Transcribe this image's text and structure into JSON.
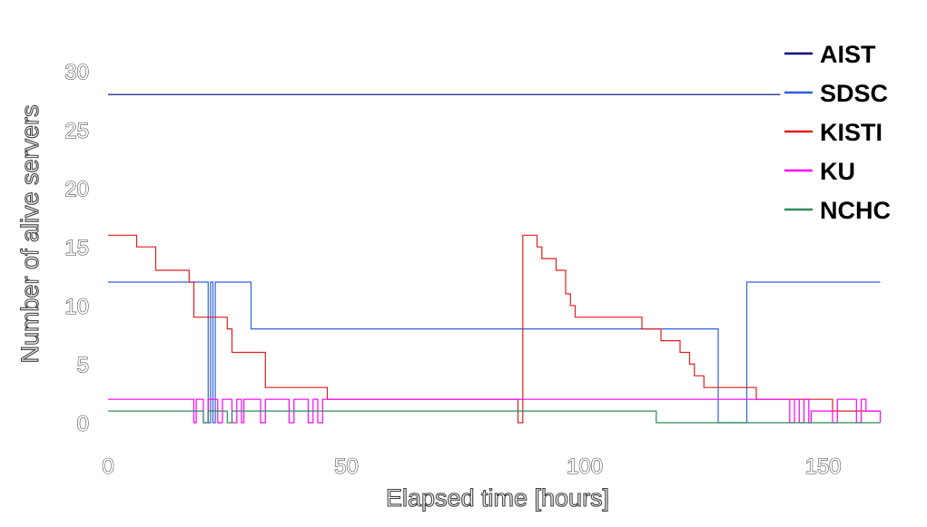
{
  "chart_data": {
    "type": "line",
    "xlabel": "Elapsed time [hours]",
    "ylabel": "Number of alive servers",
    "xlim": [
      0,
      162
    ],
    "ylim": [
      0,
      30
    ],
    "x_ticks": [
      "0",
      "50",
      "100",
      "150"
    ],
    "y_ticks": [
      "0",
      "5",
      "10",
      "15",
      "20",
      "25",
      "30"
    ],
    "legend_position": "top-right",
    "series": [
      {
        "name": "AIST",
        "color": "#000080",
        "points": [
          [
            0,
            28
          ],
          [
            141,
            28
          ]
        ]
      },
      {
        "name": "SDSC",
        "color": "#3060e0",
        "points": [
          [
            0,
            12
          ],
          [
            21,
            12
          ],
          [
            21,
            0
          ],
          [
            21.5,
            0
          ],
          [
            21.5,
            12
          ],
          [
            22,
            12
          ],
          [
            22,
            0
          ],
          [
            22.5,
            0
          ],
          [
            22.5,
            12
          ],
          [
            30,
            12
          ],
          [
            30,
            8
          ],
          [
            128,
            8
          ],
          [
            128,
            0
          ],
          [
            134,
            0
          ],
          [
            134,
            12
          ],
          [
            162,
            12
          ]
        ]
      },
      {
        "name": "KISTI",
        "color": "#e02020",
        "points": [
          [
            0,
            16
          ],
          [
            6,
            16
          ],
          [
            6,
            15
          ],
          [
            10,
            15
          ],
          [
            10,
            13
          ],
          [
            17,
            13
          ],
          [
            17,
            12
          ],
          [
            18,
            12
          ],
          [
            18,
            9
          ],
          [
            25,
            9
          ],
          [
            25,
            8
          ],
          [
            26,
            8
          ],
          [
            26,
            6
          ],
          [
            33,
            6
          ],
          [
            33,
            3
          ],
          [
            46,
            3
          ],
          [
            46,
            2
          ],
          [
            86,
            2
          ],
          [
            86,
            0
          ],
          [
            87,
            0
          ],
          [
            87,
            16
          ],
          [
            90,
            16
          ],
          [
            90,
            15
          ],
          [
            91,
            15
          ],
          [
            91,
            14
          ],
          [
            94,
            14
          ],
          [
            94,
            13
          ],
          [
            96,
            13
          ],
          [
            96,
            11
          ],
          [
            97,
            11
          ],
          [
            97,
            10
          ],
          [
            98,
            10
          ],
          [
            98,
            9
          ],
          [
            112,
            9
          ],
          [
            112,
            8
          ],
          [
            116,
            8
          ],
          [
            116,
            7
          ],
          [
            120,
            7
          ],
          [
            120,
            6
          ],
          [
            122,
            6
          ],
          [
            122,
            5
          ],
          [
            123,
            5
          ],
          [
            123,
            4
          ],
          [
            125,
            4
          ],
          [
            125,
            3
          ],
          [
            136,
            3
          ],
          [
            136,
            2
          ],
          [
            152,
            2
          ],
          [
            152,
            1
          ],
          [
            162,
            1
          ]
        ]
      },
      {
        "name": "KU",
        "color": "#ff00ff",
        "points": [
          [
            0,
            2
          ],
          [
            18,
            2
          ],
          [
            18,
            0
          ],
          [
            18.5,
            0
          ],
          [
            18.5,
            2
          ],
          [
            20,
            2
          ],
          [
            20,
            0
          ],
          [
            21,
            0
          ],
          [
            21,
            2
          ],
          [
            23,
            2
          ],
          [
            23,
            0
          ],
          [
            24,
            0
          ],
          [
            24,
            2
          ],
          [
            26,
            2
          ],
          [
            26,
            0
          ],
          [
            27,
            0
          ],
          [
            27,
            2
          ],
          [
            28,
            2
          ],
          [
            28,
            0
          ],
          [
            28.5,
            0
          ],
          [
            28.5,
            2
          ],
          [
            32,
            2
          ],
          [
            32,
            0
          ],
          [
            33,
            0
          ],
          [
            33,
            2
          ],
          [
            38,
            2
          ],
          [
            38,
            0
          ],
          [
            39,
            0
          ],
          [
            39,
            2
          ],
          [
            42,
            2
          ],
          [
            42,
            0
          ],
          [
            43,
            0
          ],
          [
            43,
            2
          ],
          [
            44,
            2
          ],
          [
            44,
            0
          ],
          [
            45,
            0
          ],
          [
            45,
            2
          ],
          [
            143,
            2
          ],
          [
            143,
            0
          ],
          [
            144,
            0
          ],
          [
            144,
            2
          ],
          [
            145,
            2
          ],
          [
            145,
            0
          ],
          [
            146,
            0
          ],
          [
            146,
            2
          ],
          [
            147,
            2
          ],
          [
            147,
            0
          ],
          [
            147.5,
            0
          ],
          [
            147.5,
            1
          ],
          [
            152,
            1
          ],
          [
            152,
            0
          ],
          [
            153,
            0
          ],
          [
            153,
            2
          ],
          [
            157,
            2
          ],
          [
            157,
            0
          ],
          [
            158,
            0
          ],
          [
            158,
            2
          ],
          [
            159,
            2
          ],
          [
            159,
            1
          ],
          [
            162,
            1
          ],
          [
            162,
            0
          ]
        ]
      },
      {
        "name": "NCHC",
        "color": "#2e8b57",
        "points": [
          [
            0,
            1
          ],
          [
            20,
            1
          ],
          [
            20,
            0
          ],
          [
            21,
            0
          ],
          [
            21,
            1
          ],
          [
            25,
            1
          ],
          [
            25,
            0
          ],
          [
            26,
            0
          ],
          [
            26,
            1
          ],
          [
            115,
            1
          ],
          [
            115,
            0
          ],
          [
            162,
            0
          ]
        ]
      }
    ]
  }
}
